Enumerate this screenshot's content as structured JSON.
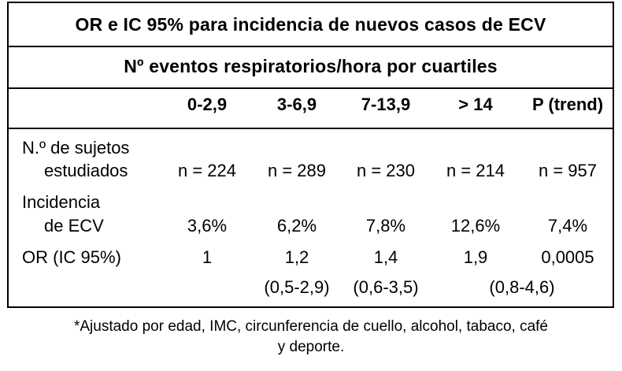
{
  "table": {
    "title": "OR e IC 95% para incidencia de nuevos casos de ECV",
    "subtitle": "Nº eventos respiratorios/hora por cuartiles",
    "columns": [
      "0-2,9",
      "3-6,9",
      "7-13,9",
      "> 14",
      "P (trend)"
    ],
    "rows": [
      {
        "label_line1": "N.º de sujetos",
        "label_line2": "estudiados",
        "values": [
          "n = 224",
          "n = 289",
          "n = 230",
          "n = 214",
          "n = 957"
        ]
      },
      {
        "label_line1": "Incidencia",
        "label_line2": "de ECV",
        "values": [
          "3,6%",
          "6,2%",
          "7,8%",
          "12,6%",
          "7,4%"
        ]
      },
      {
        "label_line1": "OR (IC 95%)",
        "values": [
          "1",
          "1,2",
          "1,4",
          "1,9",
          "0,0005"
        ],
        "ci": [
          "(0,5-2,9)",
          "(0,6-3,5)",
          "(0,8-4,6)"
        ]
      }
    ]
  },
  "footnote": {
    "line1": "*Ajustado por edad, IMC, circunferencia de cuello, alcohol, tabaco, café",
    "line2": "y deporte."
  }
}
